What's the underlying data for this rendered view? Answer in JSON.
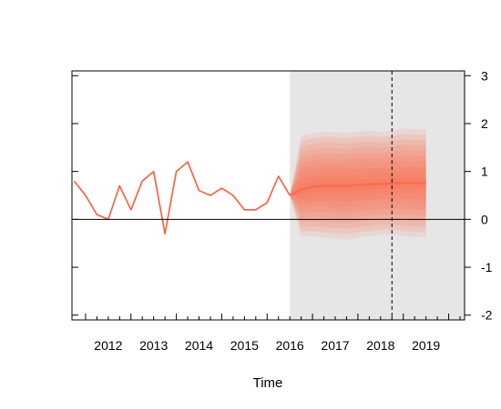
{
  "chart_data": {
    "type": "line",
    "title": "",
    "xlabel": "Time",
    "ylabel": "",
    "xlim": [
      2011.7,
      2020.35
    ],
    "ylim": [
      -2.1,
      3.1
    ],
    "x_ticks": [
      2012,
      2013,
      2014,
      2015,
      2016,
      2017,
      2018,
      2019
    ],
    "x_tick_labels": [
      "2012",
      "2013",
      "2014",
      "2015",
      "2016",
      "2017",
      "2018",
      "2019"
    ],
    "y_ticks": [
      -2,
      -1,
      0,
      1,
      2,
      3
    ],
    "y_tick_labels": [
      "-2",
      "-1",
      "0",
      "1",
      "2",
      "3"
    ],
    "y_axis_side": "right",
    "grid": false,
    "reference_line_y": 0,
    "vertical_dashed_line_x": 2018.75,
    "shaded_region": {
      "x_start": 2016.5,
      "x_end": 2020.35,
      "color": "#e6e6e6"
    },
    "colors": {
      "line": "#ff5a3c",
      "fan_base": "#ff5a3c",
      "shade": "#e6e6e6",
      "dashed": "#000000"
    },
    "series": [
      {
        "type": "line",
        "x": [
          2011.75,
          2012.0,
          2012.25,
          2012.5,
          2012.75,
          2013.0,
          2013.25,
          2013.5,
          2013.75,
          2014.0,
          2014.25,
          2014.5,
          2014.75,
          2015.0,
          2015.25,
          2015.5,
          2015.75,
          2016.0,
          2016.25,
          2016.5
        ],
        "values": [
          0.8,
          0.5,
          0.1,
          0.0,
          0.7,
          0.2,
          0.8,
          1.0,
          -0.3,
          1.0,
          1.2,
          0.6,
          0.5,
          0.65,
          0.5,
          0.2,
          0.2,
          0.35,
          0.9,
          0.5
        ]
      }
    ],
    "fan": {
      "x": [
        2016.5,
        2016.75,
        2017.0,
        2017.25,
        2017.5,
        2017.75,
        2018.0,
        2018.25,
        2018.5,
        2018.75,
        2019.0,
        2019.25,
        2019.5
      ],
      "median": [
        0.5,
        0.62,
        0.68,
        0.7,
        0.7,
        0.7,
        0.72,
        0.73,
        0.74,
        0.75,
        0.76,
        0.76,
        0.75
      ],
      "lower": [
        0.5,
        -0.35,
        -0.35,
        -0.38,
        -0.4,
        -0.42,
        -0.38,
        -0.35,
        -0.32,
        -0.32,
        -0.35,
        -0.37,
        -0.38
      ],
      "upper": [
        0.5,
        1.75,
        1.8,
        1.82,
        1.82,
        1.8,
        1.83,
        1.85,
        1.82,
        1.85,
        1.9,
        1.88,
        1.88
      ],
      "bands": 10
    }
  }
}
